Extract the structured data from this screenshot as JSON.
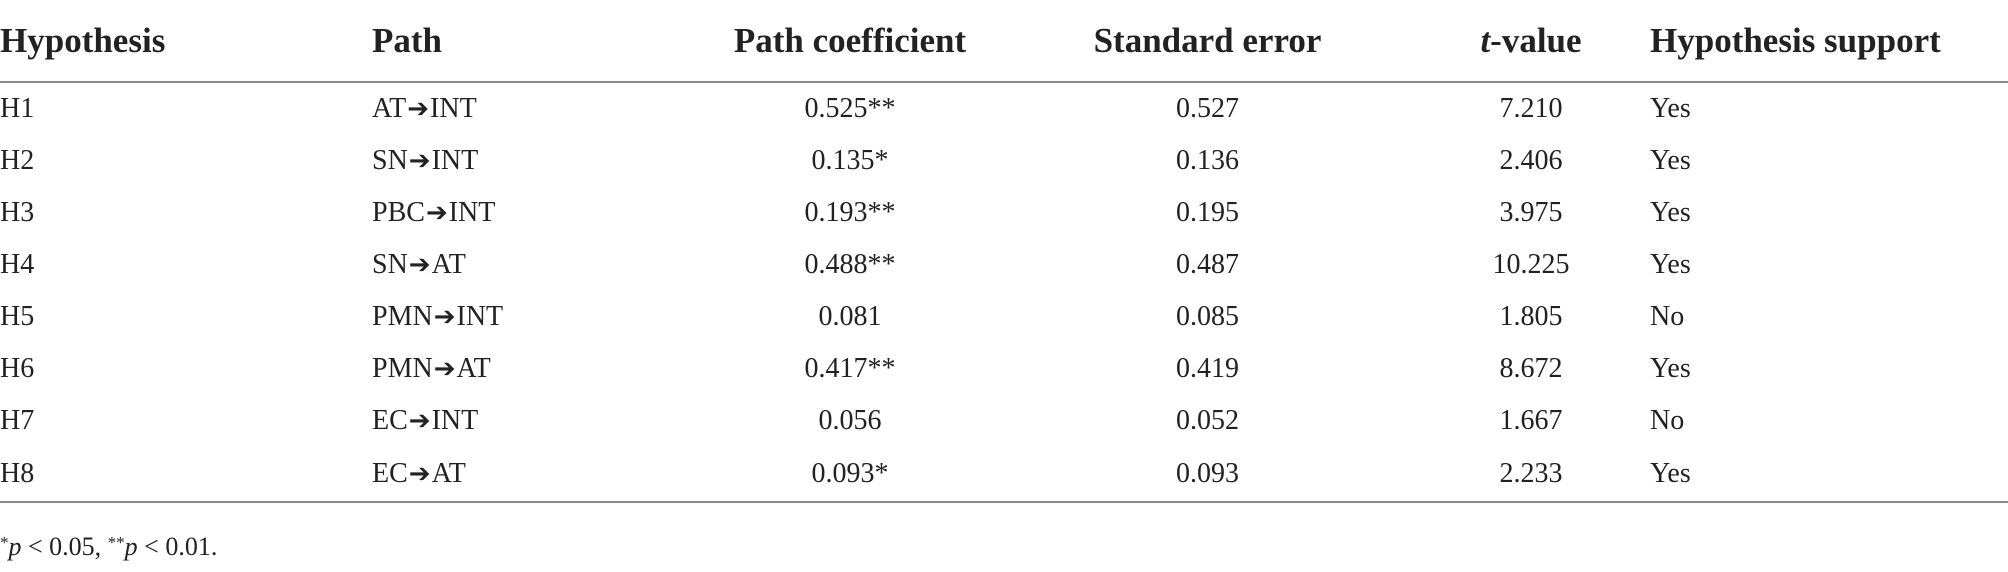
{
  "table": {
    "headers": {
      "hypothesis": "Hypothesis",
      "path": "Path",
      "coefficient": "Path coefficient",
      "standard_error": "Standard error",
      "t_value_italic": "t",
      "t_value_rest": "-value",
      "support": "Hypothesis support"
    },
    "arrow": "➔",
    "rows": [
      {
        "hypothesis": "H1",
        "from": "AT",
        "to": "INT",
        "coefficient": "0.525**",
        "se": "0.527",
        "t": "7.210",
        "support": "Yes"
      },
      {
        "hypothesis": "H2",
        "from": "SN",
        "to": "INT",
        "coefficient": "0.135*",
        "se": "0.136",
        "t": "2.406",
        "support": "Yes"
      },
      {
        "hypothesis": "H3",
        "from": "PBC",
        "to": "INT",
        "coefficient": "0.193**",
        "se": "0.195",
        "t": "3.975",
        "support": "Yes"
      },
      {
        "hypothesis": "H4",
        "from": "SN",
        "to": "AT",
        "coefficient": "0.488**",
        "se": "0.487",
        "t": "10.225",
        "support": "Yes"
      },
      {
        "hypothesis": "H5",
        "from": "PMN",
        "to": "INT",
        "coefficient": "0.081",
        "se": "0.085",
        "t": "1.805",
        "support": "No"
      },
      {
        "hypothesis": "H6",
        "from": "PMN",
        "to": "AT",
        "coefficient": "0.417**",
        "se": "0.419",
        "t": "8.672",
        "support": "Yes"
      },
      {
        "hypothesis": "H7",
        "from": "EC",
        "to": "INT",
        "coefficient": "0.056",
        "se": "0.052",
        "t": "1.667",
        "support": "No"
      },
      {
        "hypothesis": "H8",
        "from": "EC",
        "to": "AT",
        "coefficient": "0.093*",
        "se": "0.093",
        "t": "2.233",
        "support": "Yes"
      }
    ]
  },
  "footnote": {
    "star1": "*",
    "p1": "p",
    "text1": " < 0.05, ",
    "star2": "**",
    "p2": "p",
    "text2": " < 0.01."
  }
}
